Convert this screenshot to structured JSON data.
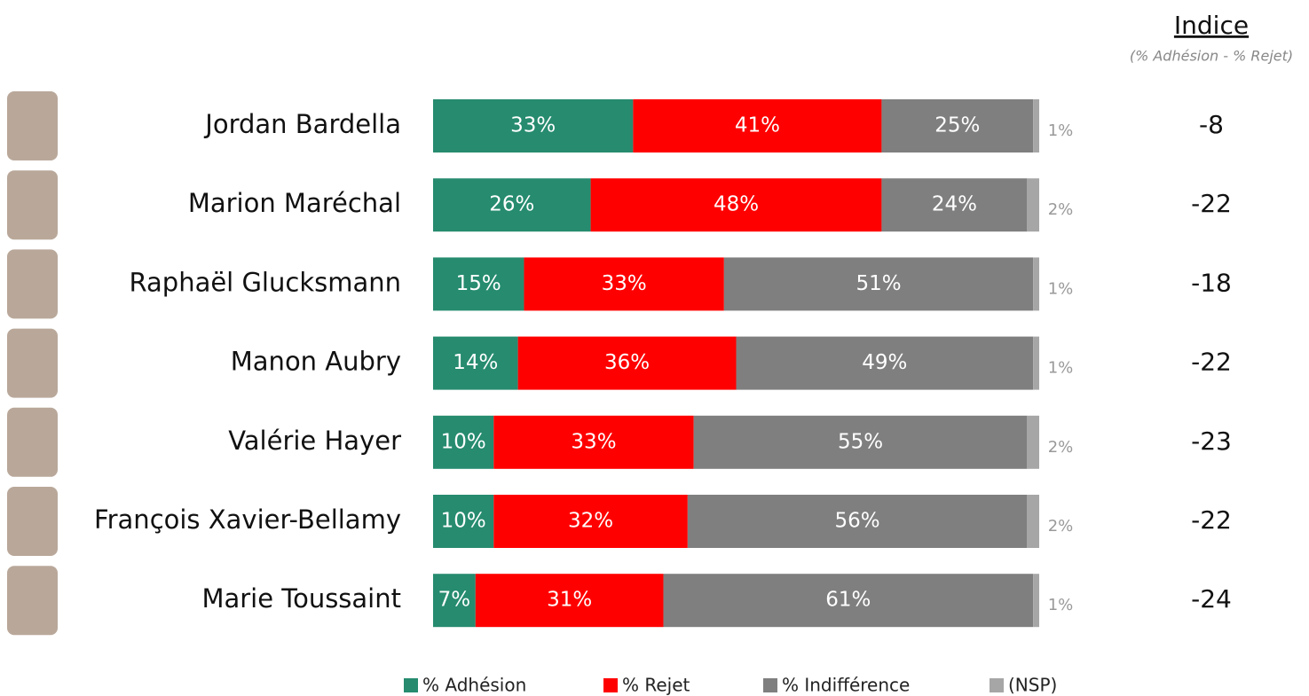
{
  "chart_data": {
    "type": "stacked_bar_horizontal",
    "categories": [
      "Jordan Bardella",
      "Marion Maréchal",
      "Raphaël Glucksmann",
      "Manon Aubry",
      "Valérie Hayer",
      "François Xavier-Bellamy",
      "Marie Toussaint"
    ],
    "xlim": [
      0,
      100
    ],
    "series": [
      {
        "name": "% Adhésion",
        "color": "#268b6f",
        "values": [
          33,
          26,
          15,
          14,
          10,
          10,
          7
        ],
        "value_labels": [
          "33%",
          "26%",
          "15%",
          "14%",
          "10%",
          "10%",
          "7%"
        ]
      },
      {
        "name": "% Rejet",
        "color": "#ff0000",
        "values": [
          41,
          48,
          33,
          36,
          33,
          32,
          31
        ],
        "value_labels": [
          "41%",
          "48%",
          "33%",
          "36%",
          "33%",
          "32%",
          "31%"
        ]
      },
      {
        "name": "% Indifférence",
        "color": "#7f7f7f",
        "values": [
          25,
          24,
          51,
          49,
          55,
          56,
          61
        ],
        "value_labels": [
          "25%",
          "24%",
          "51%",
          "49%",
          "55%",
          "56%",
          "61%"
        ]
      },
      {
        "name": "(NSP)",
        "color": "#a6a6a6",
        "values": [
          1,
          2,
          1,
          1,
          2,
          2,
          1
        ],
        "value_labels": [
          "1%",
          "2%",
          "1%",
          "1%",
          "2%",
          "2%",
          "1%"
        ]
      }
    ],
    "indice": {
      "title": "Indice",
      "subtitle": "(% Adhésion - % Rejet)",
      "values": [
        -8,
        -22,
        -18,
        -22,
        -23,
        -22,
        -24
      ]
    }
  }
}
